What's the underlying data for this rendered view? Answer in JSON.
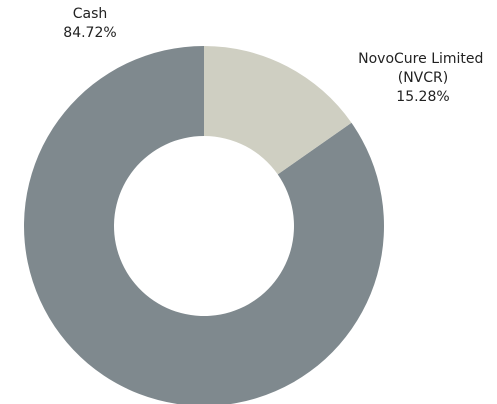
{
  "chart_data": {
    "type": "donut",
    "categories": [
      "Cash",
      "NovoCure Limited (NVCR)"
    ],
    "values": [
      84.72,
      15.28
    ],
    "value_labels": [
      "84.72%",
      "15.28%"
    ],
    "colors": [
      "#7f898e",
      "#cfcfc2"
    ]
  }
}
